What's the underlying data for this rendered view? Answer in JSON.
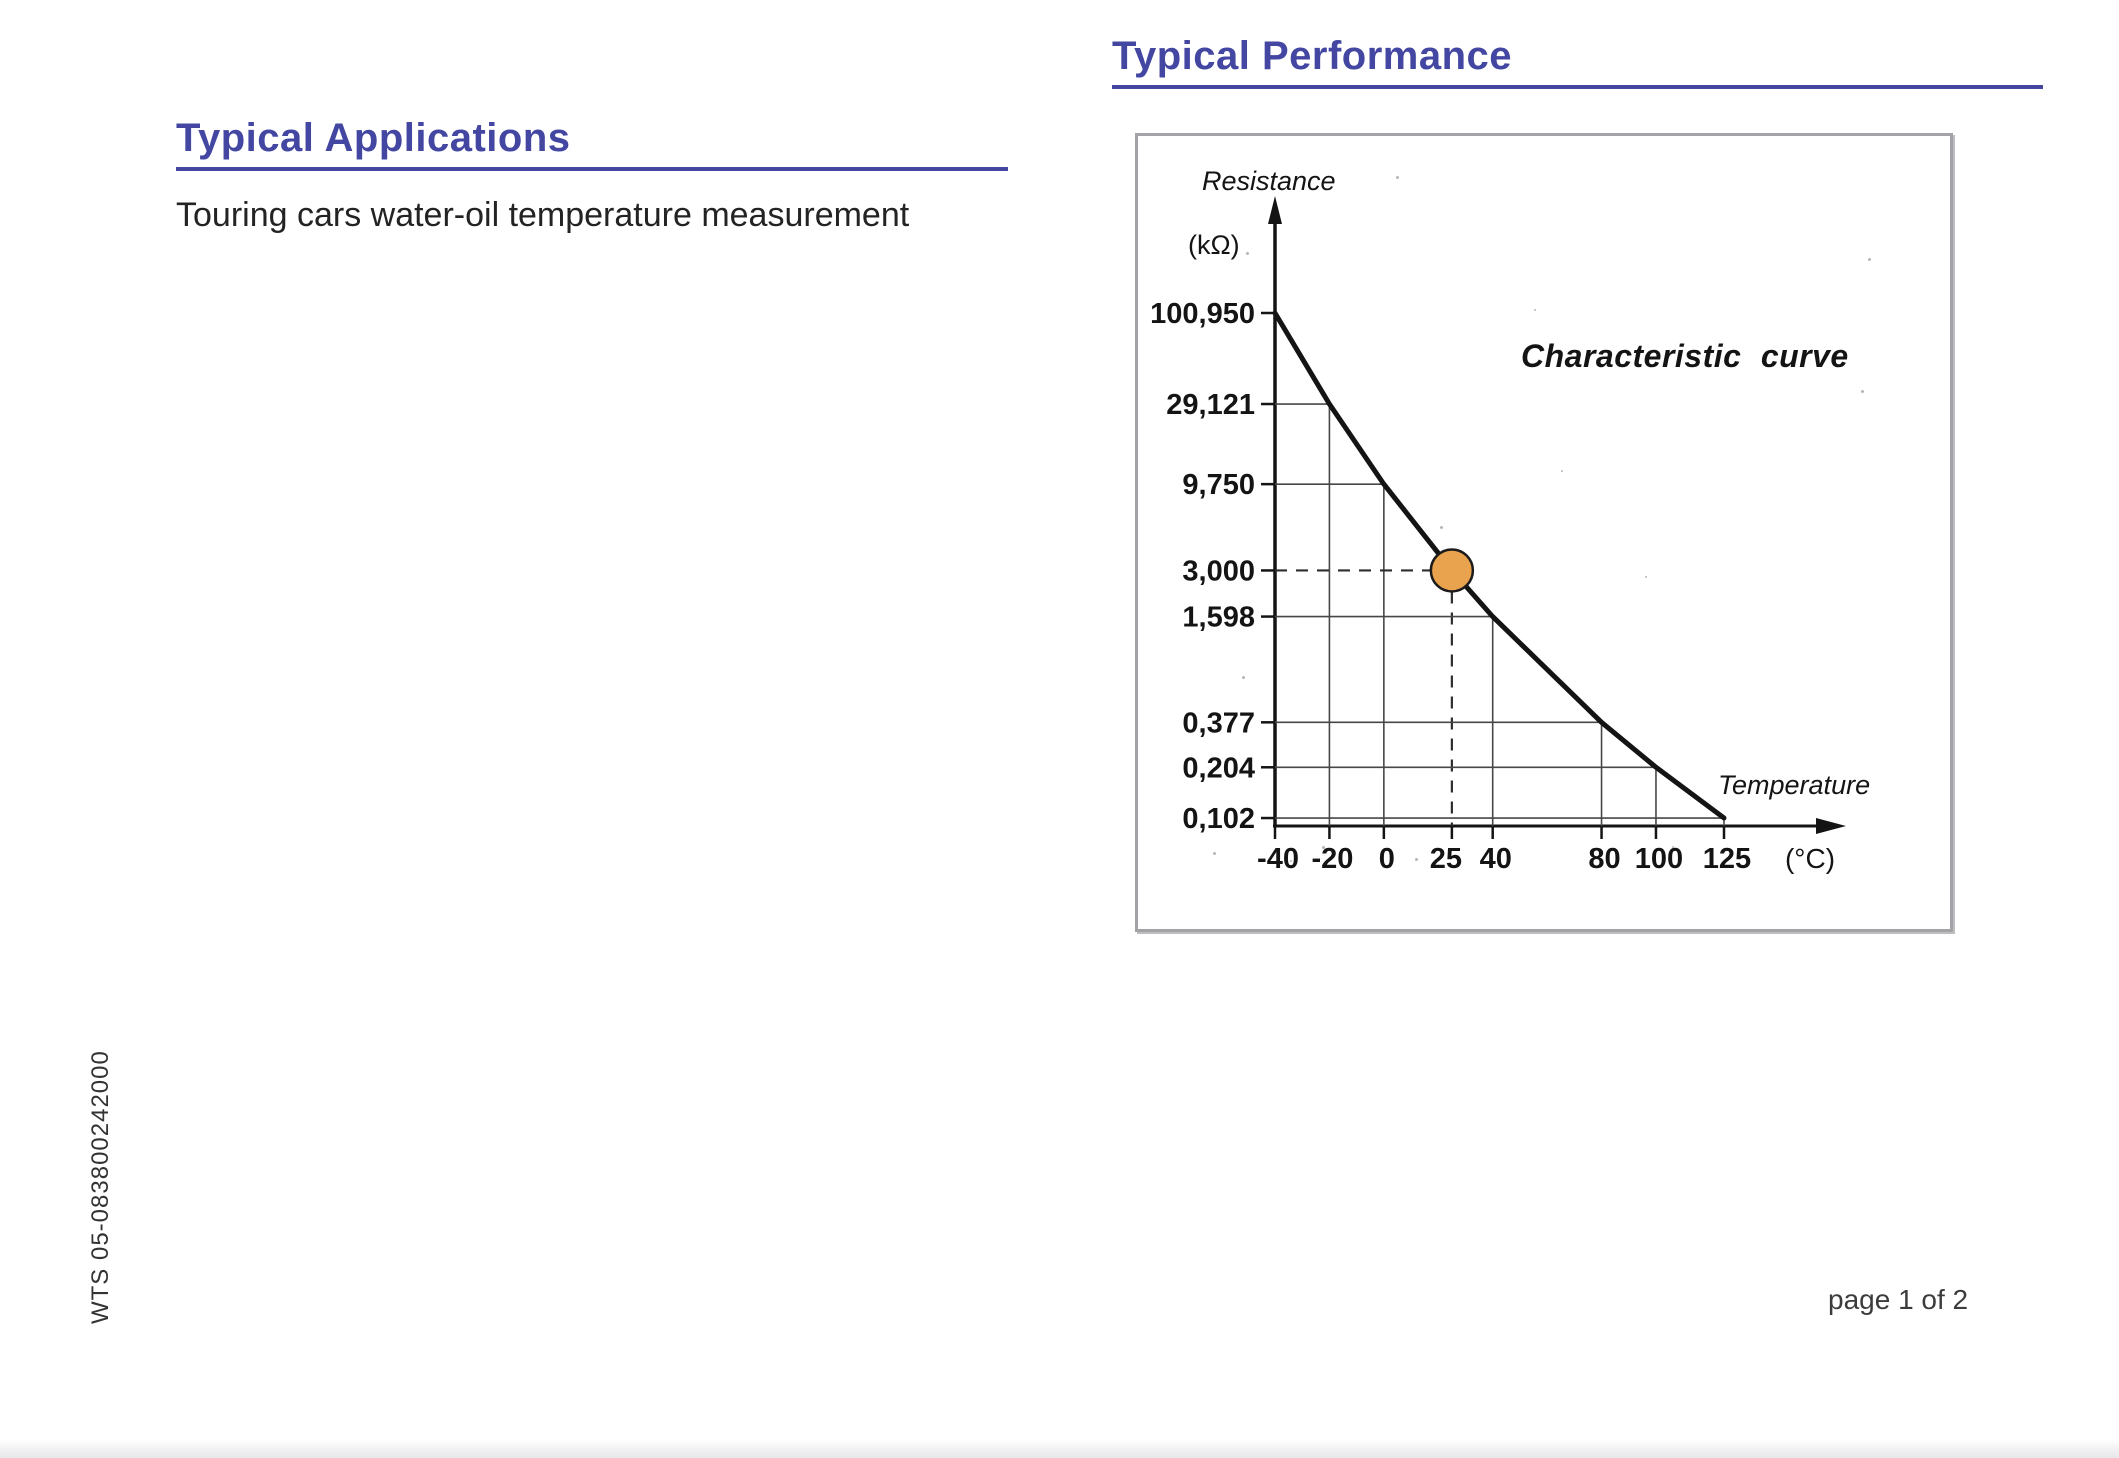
{
  "page": {
    "side_label": "WTS 05-083800242000",
    "footer": "page 1 of 2"
  },
  "sections": {
    "applications": {
      "title": "Typical Applications",
      "body": "Touring cars water-oil temperature measurement"
    },
    "performance": {
      "title": "Typical Performance"
    }
  },
  "colors": {
    "heading": "#4347a2",
    "ink": "#141414",
    "marker_fill": "#e9a24e",
    "chart_border": "#a3a3a7"
  },
  "chart_data": {
    "type": "line",
    "title": "Characteristic curve",
    "ylabel": "Resistance",
    "y_unit": "(kΩ)",
    "xlabel": "Temperature",
    "x_unit": "(°C)",
    "y_scale": "log",
    "grid": "at-data-points",
    "legend": "none",
    "xlim": [
      -40,
      125
    ],
    "x": [
      -40,
      -20,
      0,
      25,
      40,
      80,
      100,
      125
    ],
    "x_tick_labels": [
      "-40",
      "-20",
      "0",
      "25",
      "40",
      "80",
      "100",
      "125"
    ],
    "values_kohm": [
      100.95,
      29.121,
      9.75,
      3.0,
      1.598,
      0.377,
      0.204,
      0.102
    ],
    "y_tick_labels": [
      "100,950",
      "29,121",
      "9,750",
      "3,000",
      "1,598",
      "0,377",
      "0,204",
      "0,102"
    ],
    "highlight": {
      "x": 25,
      "value_kohm": 3.0
    }
  }
}
